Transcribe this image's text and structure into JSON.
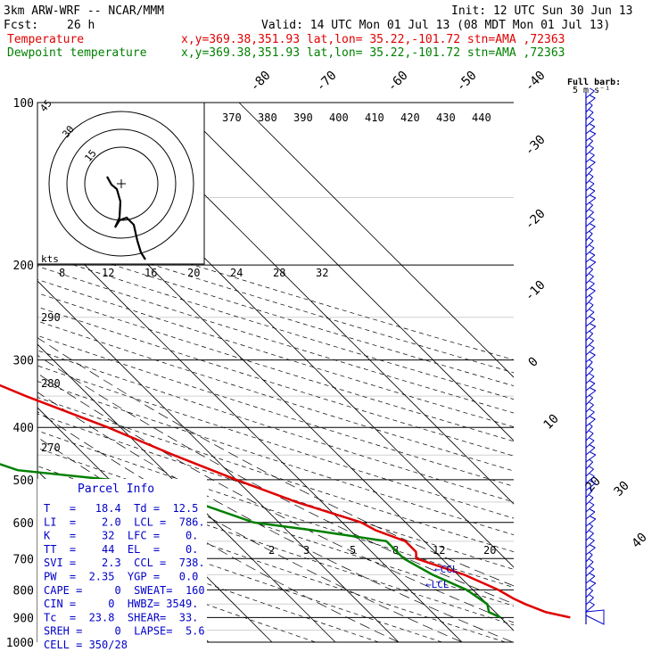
{
  "header": {
    "model": "3km ARW-WRF -- NCAR/MMM",
    "init": "Init: 12 UTC Sun 30 Jun 13",
    "fcst_label": "Fcst:",
    "fcst_value": "26 h",
    "valid": "Valid: 14 UTC Mon 01 Jul 13 (08 MDT Mon 01 Jul 13)",
    "temp_label": "Temperature",
    "dew_label": "Dewpoint temperature",
    "location": "x,y=369.38,351.93   lat,lon= 35.22,-101.72  stn=AMA ,72363",
    "full_barb_1": "Full barb:",
    "full_barb_2": "5 m s⁻¹"
  },
  "colors": {
    "temperature": "#e00000",
    "dewpoint": "#008000",
    "wind": "#0000c8",
    "hodograph": "#000000"
  },
  "chart_data": {
    "type": "line",
    "skew_t": true,
    "y_axis": {
      "scale": "log",
      "ticks": [
        100,
        200,
        300,
        400,
        500,
        600,
        700,
        800,
        900,
        1000
      ],
      "ylim": [
        1000,
        100
      ]
    },
    "isotherm_labels": [
      "-80",
      "-70",
      "-60",
      "-50",
      "-40",
      "-30",
      "-20",
      "-10",
      "0",
      "10",
      "20",
      "30",
      "40"
    ],
    "theta_labels": [
      "370",
      "380",
      "390",
      "400",
      "410",
      "420",
      "430",
      "440"
    ],
    "theta_left_labels": [
      "290",
      "280",
      "270"
    ],
    "mixing_ratio_labels": [
      "2",
      "3",
      "5",
      "8",
      "12",
      "20"
    ],
    "series": [
      {
        "name": "Temperature",
        "pressure": [
          100,
          120,
          140,
          160,
          180,
          200,
          250,
          300,
          350,
          400,
          450,
          500,
          550,
          600,
          620,
          650,
          680,
          700,
          750,
          800,
          830,
          850,
          880,
          900
        ],
        "temperature": [
          -70,
          -67,
          -64,
          -62,
          -60,
          -55,
          -47,
          -38,
          -30,
          -22,
          -16,
          -10,
          -4,
          3,
          4,
          7,
          7,
          6,
          11,
          14,
          15,
          16,
          18,
          21
        ]
      },
      {
        "name": "Dewpoint temperature",
        "pressure": [
          100,
          130,
          160,
          200,
          250,
          300,
          320,
          350,
          380,
          400,
          430,
          480,
          500,
          550,
          600,
          620,
          650,
          680,
          700,
          750,
          800,
          850,
          880,
          900
        ],
        "dewpoint": [
          -81,
          -80,
          -78,
          -75,
          -70,
          -67,
          -62,
          -59,
          -50,
          -44,
          -51,
          -43,
          -30,
          -20,
          -14,
          -6,
          4,
          4,
          4,
          6,
          9,
          10,
          9,
          10
        ]
      }
    ],
    "hodograph": {
      "rings_label": "kts",
      "ring_labels": [
        "15",
        "30",
        "45"
      ],
      "speed_ticks": [
        "8",
        "12",
        "16",
        "20",
        "24",
        "28",
        "32"
      ]
    },
    "annotations": [
      "CCL",
      "LCL"
    ]
  },
  "parcel_info": {
    "title": "Parcel Info",
    "rows": [
      "T   =   18.4  Td =  12.5",
      "LI  =    2.0  LCL =  786.",
      "K   =    32  LFC =    0.",
      "TT  =    44  EL  =    0.",
      "SVI =    2.3  CCL =  738.",
      "PW  =  2.35  YGP =   0.0",
      "CAPE =     0  SWEAT=  160",
      "CIN =     0  HWBZ= 3549.",
      "Tc  =  23.8  SHEAR=  33.",
      "SREH =     0  LAPSE=  5.6",
      "CELL = 350/28"
    ]
  }
}
